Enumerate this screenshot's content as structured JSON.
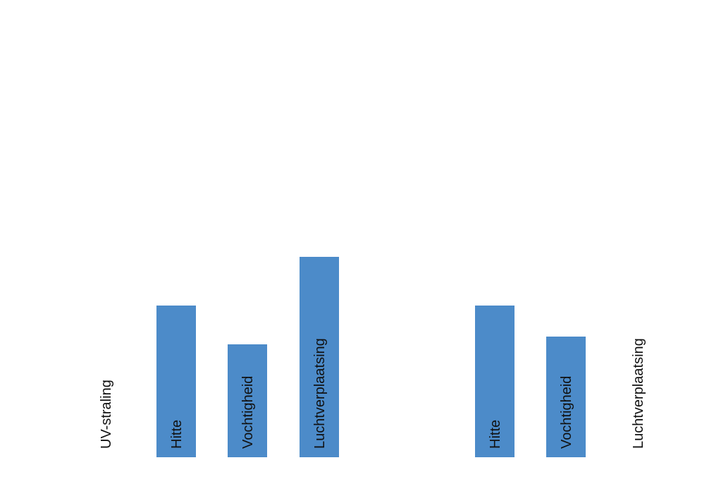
{
  "chart_data": {
    "type": "bar",
    "color": "#4c8bc9",
    "label_color": "#111111",
    "groups": [
      {
        "categories": [
          "UV-straling",
          "Hitte",
          "Vochtigheid",
          "Luchtverplaatsing"
        ],
        "values": [
          0,
          215,
          160,
          284
        ]
      },
      {
        "categories": [
          "Hitte",
          "Vochtigheid",
          "Luchtverplaatsing"
        ],
        "values": [
          215,
          171,
          0
        ]
      }
    ]
  }
}
